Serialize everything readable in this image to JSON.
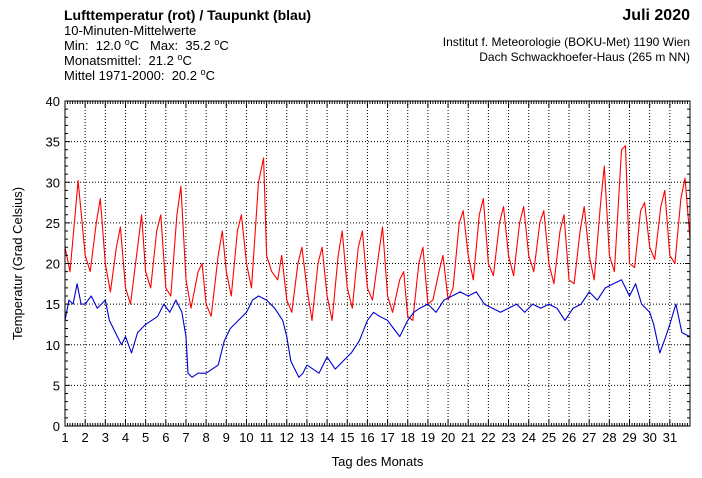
{
  "header": {
    "title": "Lufttemperatur (rot) / Taupunkt (blau)",
    "subtitle": "10-Minuten-Mittelwerte",
    "min_label": "Min:",
    "min_value": "12.0",
    "max_label": "Max:",
    "max_value": "35.2",
    "unit": "C",
    "unit_degree": "o",
    "monthly_mean_label": "Monatsmittel:",
    "monthly_mean_value": "21.2",
    "longterm_label": "Mittel 1971-2000:",
    "longterm_value": "20.2",
    "month": "Juli 2020",
    "institute": "Institut f. Meteorologie (BOKU-Met) 1190 Wien",
    "location": "Dach Schwackhoefer-Haus (265 m NN)"
  },
  "chart_data": {
    "type": "line",
    "title": "Lufttemperatur (rot) / Taupunkt (blau)",
    "xlabel": "Tag des Monats",
    "ylabel": "Temperatur (Grad Celsius)",
    "xlim": [
      1,
      32
    ],
    "ylim": [
      0,
      40
    ],
    "x_ticks": [
      "1",
      "2",
      "3",
      "4",
      "5",
      "6",
      "7",
      "8",
      "9",
      "10",
      "11",
      "12",
      "13",
      "14",
      "15",
      "16",
      "17",
      "18",
      "19",
      "20",
      "21",
      "22",
      "23",
      "24",
      "25",
      "26",
      "27",
      "28",
      "29",
      "30",
      "31"
    ],
    "y_ticks": [
      0,
      5,
      10,
      15,
      20,
      25,
      30,
      35,
      40
    ],
    "grid": true,
    "colors": {
      "temperature": "#ff0000",
      "dewpoint": "#0000cc",
      "grid": "#000000"
    },
    "series": [
      {
        "key": "temperature",
        "x": [
          1.0,
          1.25,
          1.5,
          1.65,
          2.0,
          2.25,
          2.55,
          2.75,
          3.0,
          3.25,
          3.55,
          3.75,
          4.0,
          4.25,
          4.6,
          4.8,
          5.0,
          5.25,
          5.55,
          5.75,
          6.0,
          6.25,
          6.55,
          6.75,
          7.0,
          7.25,
          7.6,
          7.8,
          8.0,
          8.25,
          8.6,
          8.8,
          9.0,
          9.25,
          9.55,
          9.75,
          10.0,
          10.25,
          10.6,
          10.85,
          11.0,
          11.25,
          11.55,
          11.75,
          12.0,
          12.25,
          12.55,
          12.75,
          13.0,
          13.25,
          13.55,
          13.75,
          14.0,
          14.25,
          14.55,
          14.75,
          15.0,
          15.25,
          15.55,
          15.75,
          16.0,
          16.25,
          16.55,
          16.75,
          17.0,
          17.25,
          17.6,
          17.8,
          18.0,
          18.25,
          18.55,
          18.75,
          19.0,
          19.25,
          19.55,
          19.75,
          20.0,
          20.25,
          20.55,
          20.75,
          21.0,
          21.25,
          21.55,
          21.75,
          22.0,
          22.25,
          22.55,
          22.75,
          23.0,
          23.25,
          23.55,
          23.75,
          24.0,
          24.25,
          24.55,
          24.75,
          25.0,
          25.25,
          25.55,
          25.75,
          26.0,
          26.25,
          26.55,
          26.75,
          27.0,
          27.25,
          27.55,
          27.75,
          28.0,
          28.25,
          28.6,
          28.8,
          29.0,
          29.25,
          29.55,
          29.75,
          30.0,
          30.25,
          30.55,
          30.75,
          31.0,
          31.25,
          31.55,
          31.75,
          32.0
        ],
        "values": [
          22.0,
          19.0,
          26.0,
          30.2,
          21.0,
          19.0,
          25.0,
          28.0,
          20.0,
          16.5,
          22.0,
          24.5,
          17.0,
          15.0,
          22.0,
          26.0,
          19.0,
          17.0,
          24.0,
          26.0,
          17.0,
          16.0,
          26.0,
          29.5,
          18.0,
          14.5,
          19.0,
          20.0,
          15.0,
          13.5,
          21.0,
          24.0,
          19.0,
          16.0,
          24.0,
          26.0,
          20.0,
          17.0,
          30.0,
          33.0,
          21.0,
          19.0,
          18.0,
          21.0,
          15.5,
          14.0,
          20.0,
          22.0,
          17.0,
          13.0,
          20.0,
          22.0,
          16.0,
          13.0,
          21.0,
          24.0,
          17.0,
          14.5,
          22.0,
          24.0,
          17.0,
          15.5,
          21.0,
          24.5,
          16.0,
          14.0,
          18.0,
          19.0,
          13.5,
          13.0,
          20.0,
          22.0,
          15.0,
          15.5,
          19.0,
          21.0,
          15.5,
          17.0,
          25.0,
          26.5,
          21.0,
          18.0,
          26.0,
          28.0,
          20.0,
          18.5,
          25.0,
          27.0,
          21.0,
          18.5,
          25.0,
          27.0,
          21.0,
          19.0,
          25.0,
          26.5,
          20.0,
          17.5,
          24.0,
          26.0,
          18.0,
          17.5,
          24.0,
          27.0,
          21.0,
          18.0,
          27.0,
          32.0,
          21.0,
          19.0,
          34.0,
          34.5,
          20.0,
          19.5,
          26.5,
          27.5,
          22.0,
          20.5,
          27.0,
          29.0,
          21.0,
          20.0,
          28.0,
          30.5,
          23.0
        ]
      },
      {
        "key": "dewpoint",
        "x": [
          1.0,
          1.2,
          1.4,
          1.6,
          1.8,
          2.0,
          2.3,
          2.6,
          3.0,
          3.2,
          3.5,
          3.8,
          4.0,
          4.3,
          4.6,
          5.0,
          5.3,
          5.6,
          5.9,
          6.2,
          6.5,
          6.8,
          7.0,
          7.1,
          7.3,
          7.6,
          8.0,
          8.3,
          8.6,
          8.9,
          9.2,
          9.6,
          10.0,
          10.3,
          10.6,
          11.0,
          11.4,
          11.8,
          12.0,
          12.2,
          12.4,
          12.6,
          12.8,
          13.0,
          13.3,
          13.6,
          14.0,
          14.4,
          14.8,
          15.2,
          15.6,
          16.0,
          16.3,
          16.6,
          17.0,
          17.3,
          17.6,
          18.0,
          18.3,
          18.6,
          19.0,
          19.4,
          19.8,
          20.2,
          20.6,
          21.0,
          21.4,
          21.8,
          22.2,
          22.6,
          23.0,
          23.4,
          23.8,
          24.2,
          24.6,
          25.0,
          25.4,
          25.8,
          26.2,
          26.6,
          27.0,
          27.4,
          27.8,
          28.2,
          28.6,
          29.0,
          29.3,
          29.6,
          30.0,
          30.2,
          30.5,
          30.8,
          31.0,
          31.3,
          31.6,
          32.0
        ],
        "values": [
          13.0,
          15.5,
          15.0,
          17.5,
          15.0,
          15.0,
          16.0,
          14.5,
          15.5,
          13.0,
          11.5,
          10.0,
          11.0,
          9.0,
          11.5,
          12.5,
          13.0,
          13.5,
          15.0,
          14.0,
          15.5,
          14.0,
          11.0,
          6.5,
          6.0,
          6.5,
          6.5,
          7.0,
          7.5,
          10.5,
          12.0,
          13.0,
          14.0,
          15.5,
          16.0,
          15.5,
          14.5,
          13.0,
          11.0,
          8.0,
          7.0,
          6.0,
          6.5,
          7.5,
          7.0,
          6.5,
          8.5,
          7.0,
          8.0,
          9.0,
          10.5,
          13.0,
          14.0,
          13.5,
          13.0,
          12.0,
          11.0,
          13.0,
          14.0,
          14.5,
          15.0,
          14.0,
          15.5,
          16.0,
          16.5,
          16.0,
          16.5,
          15.0,
          14.5,
          14.0,
          14.5,
          15.0,
          14.0,
          15.0,
          14.5,
          15.0,
          14.5,
          13.0,
          14.5,
          15.0,
          16.5,
          15.5,
          17.0,
          17.5,
          18.0,
          16.0,
          17.5,
          15.0,
          14.0,
          12.5,
          9.0,
          11.0,
          12.5,
          15.0,
          11.5,
          11.0
        ]
      }
    ]
  }
}
